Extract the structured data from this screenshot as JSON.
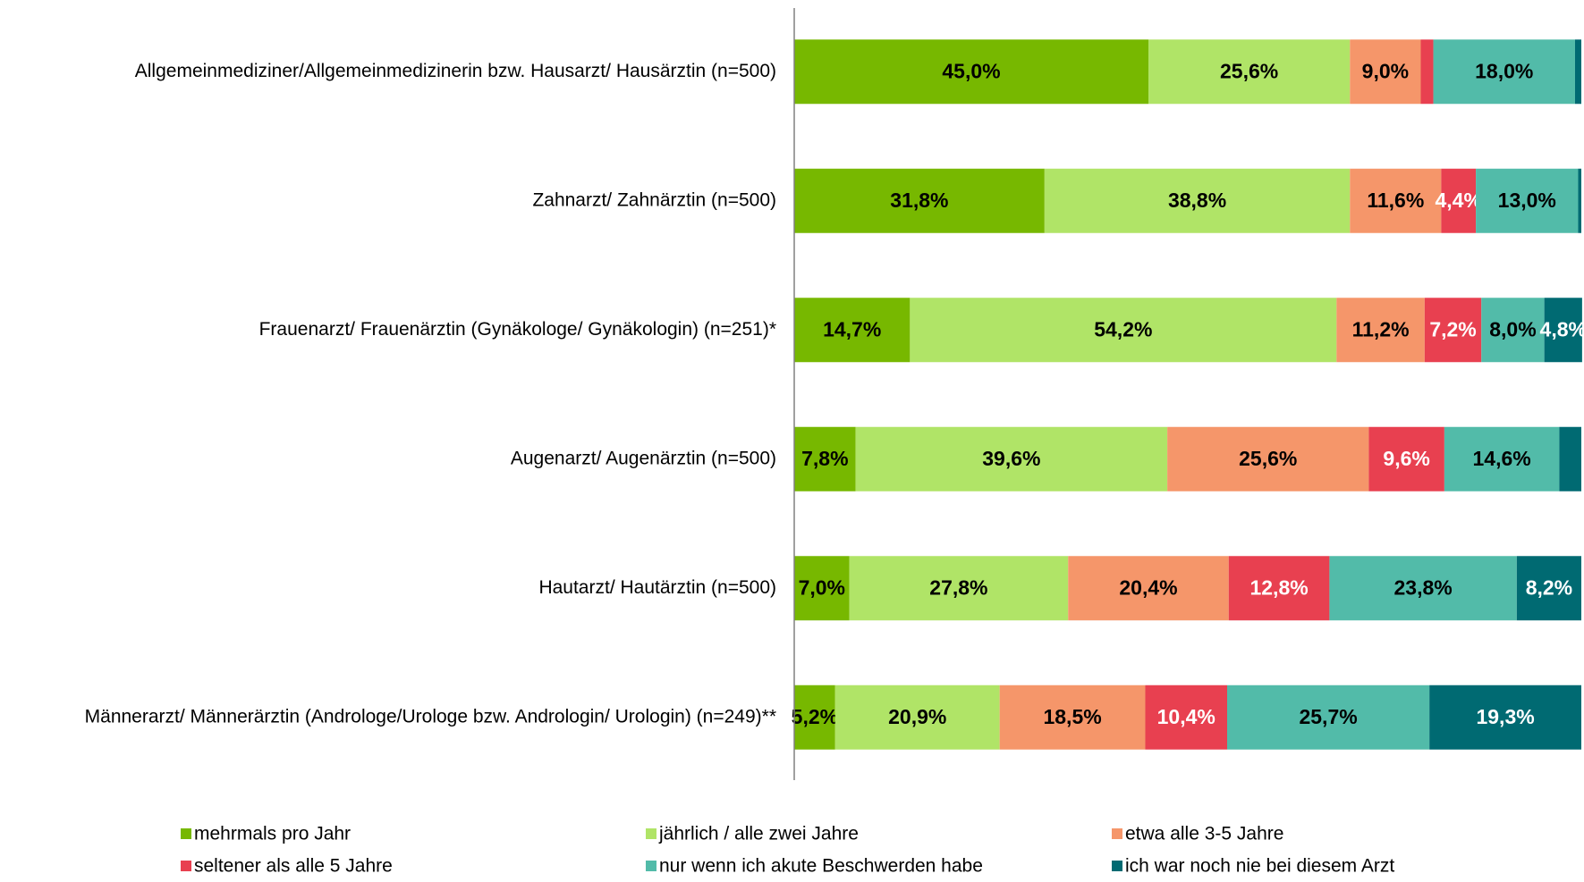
{
  "chart_data": {
    "type": "stacked-bar-horizontal",
    "categories": [
      "Allgemeinmediziner/Allgemeinmedizinerin bzw. Hausarzt/ Hausärztin (n=500)",
      "Zahnarzt/ Zahnärztin (n=500)",
      "Frauenarzt/ Frauenärztin (Gynäkologe/ Gynäkologin) (n=251)*",
      "Augenarzt/ Augenärztin (n=500)",
      "Hautarzt/ Hautärztin (n=500)",
      "Männerarzt/ Männerärztin (Androloge/Urologe bzw. Andrologin/ Urologin) (n=249)**"
    ],
    "xlim": [
      0,
      100
    ],
    "series": [
      {
        "name": "mehrmals pro Jahr",
        "color": "#77b800",
        "label_color": "#000000",
        "values": [
          45.0,
          31.8,
          14.7,
          7.8,
          7.0,
          5.2
        ],
        "value_labels": [
          "45,0%",
          "31,8%",
          "14,7%",
          "7,8%",
          "7,0%",
          "5,2%"
        ]
      },
      {
        "name": "jährlich / alle zwei Jahre",
        "color": "#b0e467",
        "label_color": "#000000",
        "values": [
          25.6,
          38.8,
          54.2,
          39.6,
          27.8,
          20.9
        ],
        "value_labels": [
          "25,6%",
          "38,8%",
          "54,2%",
          "39,6%",
          "27,8%",
          "20,9%"
        ]
      },
      {
        "name": "etwa alle 3-5 Jahre",
        "color": "#f5966a",
        "label_color": "#000000",
        "values": [
          9.0,
          11.6,
          11.2,
          25.6,
          20.4,
          18.5
        ],
        "value_labels": [
          "9,0%",
          "11,6%",
          "11,2%",
          "25,6%",
          "20,4%",
          "18,5%"
        ]
      },
      {
        "name": "seltener als alle 5 Jahre",
        "color": "#e84050",
        "label_color": "#ffffff",
        "values": [
          1.6,
          4.4,
          7.2,
          9.6,
          12.8,
          10.4
        ],
        "value_labels": [
          null,
          "4,4%",
          "7,2%",
          "9,6%",
          "12,8%",
          "10,4%"
        ]
      },
      {
        "name": "nur wenn ich akute Beschwerden habe",
        "color": "#52bba9",
        "label_color": "#000000",
        "values": [
          18.0,
          13.0,
          8.0,
          14.6,
          23.8,
          25.7
        ],
        "value_labels": [
          "18,0%",
          "13,0%",
          "8,0%",
          "14,6%",
          "23,8%",
          "25,7%"
        ]
      },
      {
        "name": "ich war noch nie bei diesem Arzt",
        "color": "#006a72",
        "label_color": "#ffffff",
        "values": [
          0.8,
          0.4,
          4.8,
          2.8,
          8.2,
          19.3
        ],
        "value_labels": [
          null,
          null,
          "4,8%",
          null,
          "8,2%",
          "19,3%"
        ]
      }
    ]
  }
}
